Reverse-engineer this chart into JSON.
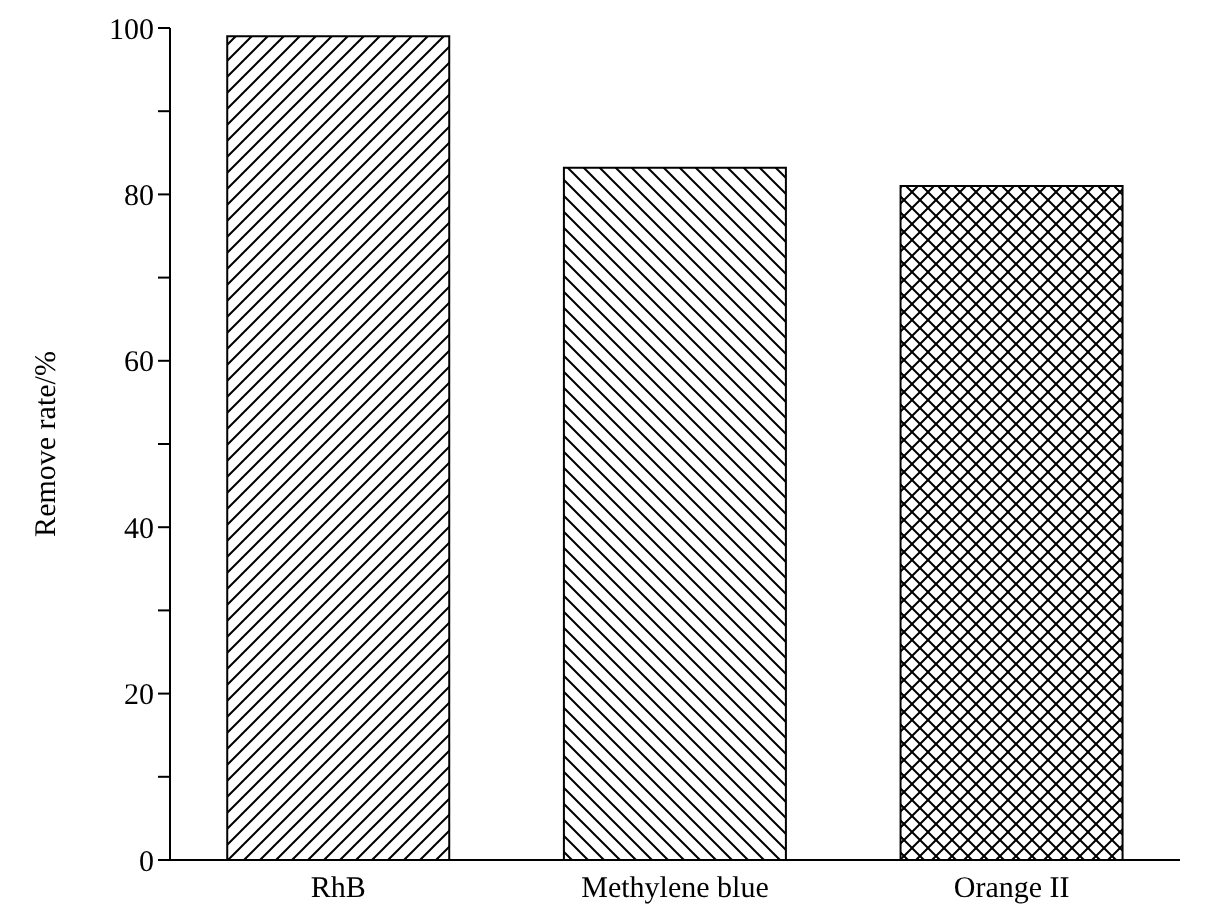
{
  "chart_data": {
    "type": "bar",
    "ylabel": "Remove rate/%",
    "categories": [
      "RhB",
      "Methylene blue",
      "Orange II"
    ],
    "values": [
      99,
      83.2,
      81
    ],
    "colors": [
      "#000000",
      "#000000",
      "#000000"
    ],
    "ylim": [
      0,
      100
    ],
    "yticks": [
      0,
      {
        "value": 10,
        "label": null
      },
      20,
      {
        "value": 30,
        "label": null
      },
      40,
      {
        "value": 50,
        "label": null
      },
      60,
      {
        "value": 70,
        "label": null
      },
      80,
      {
        "value": 90,
        "label": null
      },
      100
    ],
    "grid": false,
    "legend": false
  }
}
